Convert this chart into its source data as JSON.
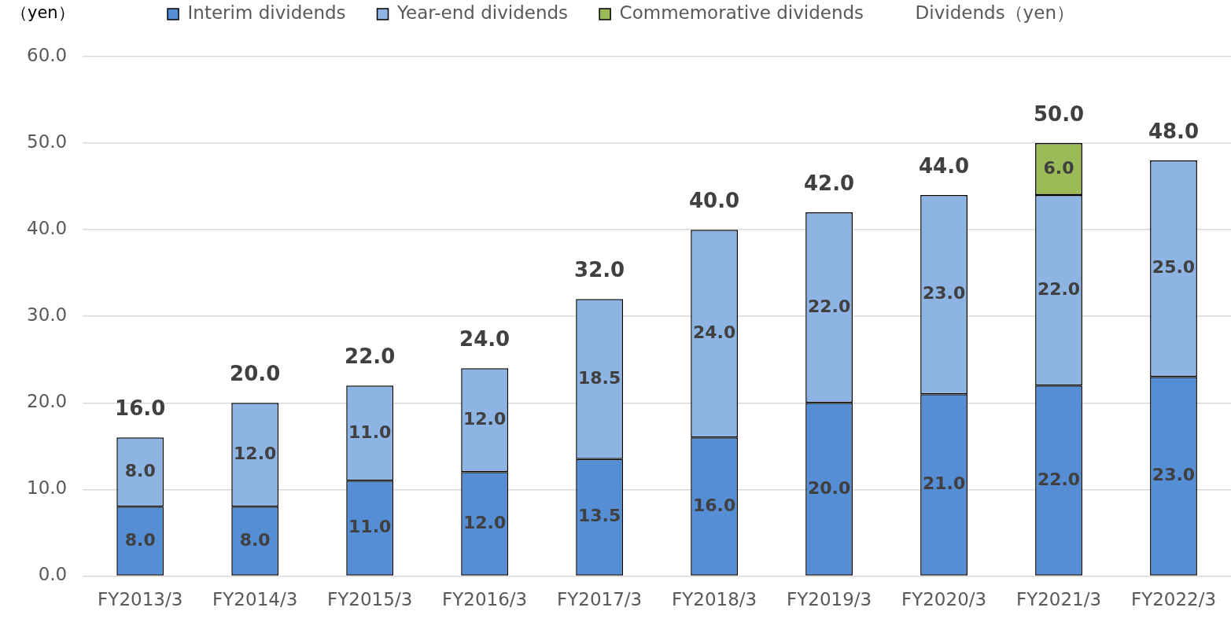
{
  "chart_data": {
    "type": "bar",
    "stacked": true,
    "ylabel": "（yen）",
    "categories": [
      "FY2013/3",
      "FY2014/3",
      "FY2015/3",
      "FY2016/3",
      "FY2017/3",
      "FY2018/3",
      "FY2019/3",
      "FY2020/3",
      "FY2021/3",
      "FY2022/3"
    ],
    "series": [
      {
        "name": "Interim dividends",
        "color": "#558ed5",
        "values": [
          8,
          8,
          11,
          12,
          13.5,
          16,
          20,
          21,
          22,
          23
        ],
        "value_labels": [
          "8.0",
          "8.0",
          "11.0",
          "12.0",
          "13.5",
          "16.0",
          "20.0",
          "21.0",
          "22.0",
          "23.0"
        ]
      },
      {
        "name": "Year-end dividends",
        "color": "#8eb4e3",
        "values": [
          8,
          12,
          11,
          12,
          18.5,
          24,
          22,
          23,
          22,
          25
        ],
        "value_labels": [
          "8.0",
          "12.0",
          "11.0",
          "12.0",
          "18.5",
          "24.0",
          "22.0",
          "23.0",
          "22.0",
          "25.0"
        ]
      },
      {
        "name": "Commemorative dividends",
        "color": "#9bbb59",
        "values": [
          null,
          null,
          null,
          null,
          null,
          null,
          null,
          null,
          6,
          null
        ],
        "value_labels": [
          null,
          null,
          null,
          null,
          null,
          null,
          null,
          null,
          "6.0",
          null
        ]
      }
    ],
    "totals": [
      "16.0",
      "20.0",
      "22.0",
      "24.0",
      "32.0",
      "40.0",
      "42.0",
      "44.0",
      "50.0",
      "48.0"
    ],
    "ylim": [
      0,
      60
    ],
    "yticks": [
      {
        "value": 0,
        "label": "0.0"
      },
      {
        "value": 10,
        "label": "10.0"
      },
      {
        "value": 20,
        "label": "20.0"
      },
      {
        "value": 30,
        "label": "30.0"
      },
      {
        "value": 40,
        "label": "40.0"
      },
      {
        "value": 50,
        "label": "50.0"
      },
      {
        "value": 60,
        "label": "60.0"
      }
    ],
    "grid": "y",
    "legend": "top",
    "annotations": [
      "Dividends（yen）"
    ]
  }
}
